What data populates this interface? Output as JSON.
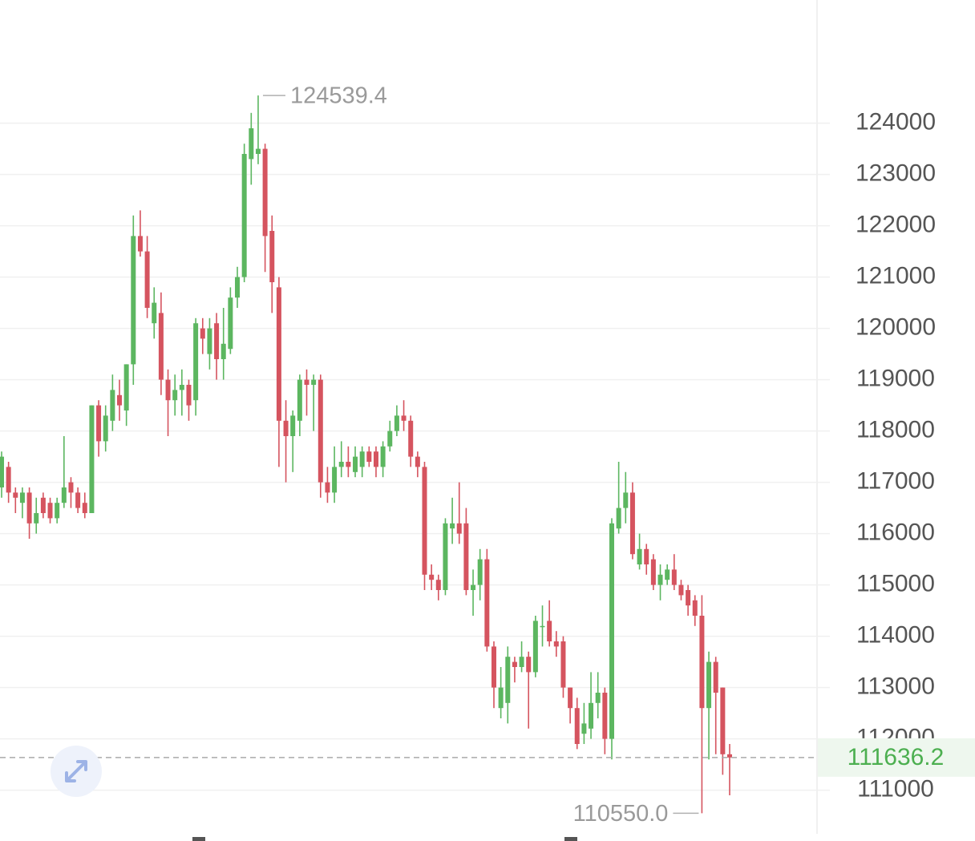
{
  "chart_data": {
    "type": "candlestick",
    "ylim": [
      110150,
      126400
    ],
    "yticks": [
      111000,
      112000,
      113000,
      114000,
      115000,
      116000,
      117000,
      118000,
      119000,
      120000,
      121000,
      122000,
      123000,
      124000
    ],
    "grid": true,
    "up_color": "#5cb660",
    "down_color": "#d5545f",
    "open": [
      116900,
      117300,
      116800,
      116600,
      116800,
      116200,
      116700,
      116600,
      116300,
      116600,
      117000,
      116800,
      116600,
      116400,
      118500,
      117800,
      118200,
      118700,
      118400,
      119300,
      121800,
      121500,
      120100,
      120300,
      119000,
      118600,
      118800,
      118900,
      118600,
      120000,
      119500,
      120100,
      119400,
      119600,
      120600,
      121000,
      123300,
      123400,
      123500,
      121900,
      120800,
      118200,
      117900,
      118200,
      119000,
      118900,
      119000,
      117000,
      116800,
      117300,
      117400,
      117200,
      117300,
      117600,
      117600,
      117300,
      117700,
      118000,
      118300,
      118200,
      117500,
      117300,
      115200,
      115100,
      114900,
      116100,
      116200,
      116200,
      114900,
      115000,
      115500,
      113800,
      112600,
      112700,
      113500,
      113400,
      113600,
      113300,
      114200,
      114300,
      113900,
      113900,
      113000,
      112600,
      112100,
      112200,
      112700,
      112900,
      112000,
      116100,
      116500,
      116800,
      115400,
      115700,
      115500,
      115000,
      115100,
      115300,
      115000,
      114900,
      114700,
      114400,
      112600,
      113500,
      113000,
      111700
    ],
    "high": [
      117600,
      117400,
      116900,
      116900,
      116900,
      116700,
      116800,
      116700,
      116700,
      117900,
      117100,
      116900,
      116800,
      118500,
      118600,
      118500,
      119100,
      119000,
      119300,
      122200,
      122300,
      121800,
      120800,
      120700,
      119200,
      119100,
      119200,
      119000,
      120200,
      120200,
      120200,
      120300,
      120400,
      120800,
      121200,
      123600,
      124200,
      124539.4,
      123600,
      122200,
      121000,
      118600,
      118400,
      119100,
      119200,
      119100,
      119100,
      117300,
      117700,
      117800,
      117700,
      117700,
      117700,
      117700,
      117700,
      117800,
      118200,
      118500,
      118600,
      118300,
      117600,
      117400,
      115400,
      115200,
      116300,
      116700,
      117000,
      116500,
      115300,
      115700,
      115700,
      113900,
      113400,
      113800,
      113600,
      113900,
      113700,
      114400,
      114600,
      114700,
      114100,
      114000,
      113000,
      112800,
      112700,
      113300,
      113300,
      113000,
      116300,
      117400,
      117200,
      117000,
      116000,
      115800,
      115600,
      115400,
      115400,
      115600,
      115100,
      115000,
      114800,
      114800,
      113700,
      113600,
      113000,
      111900
    ],
    "low": [
      116700,
      116600,
      116400,
      116300,
      115900,
      116000,
      116300,
      116200,
      116200,
      116500,
      116500,
      116400,
      116300,
      116400,
      117500,
      117600,
      118000,
      118200,
      118100,
      118900,
      121400,
      120200,
      119800,
      118700,
      117900,
      118300,
      118300,
      118200,
      118300,
      119500,
      119200,
      119000,
      119000,
      119500,
      120400,
      120900,
      122800,
      123200,
      121100,
      120300,
      117300,
      117000,
      117200,
      117900,
      118300,
      118000,
      116700,
      116600,
      116600,
      117100,
      117100,
      117100,
      117100,
      117300,
      117100,
      117100,
      117600,
      117900,
      118000,
      117300,
      117100,
      114900,
      114900,
      114700,
      114800,
      115800,
      115800,
      114800,
      114400,
      114700,
      113700,
      112600,
      112400,
      112300,
      113100,
      113300,
      112200,
      113200,
      113800,
      113800,
      113600,
      112800,
      112300,
      111800,
      111900,
      112000,
      112400,
      111700,
      111600,
      116000,
      116200,
      115500,
      115300,
      115200,
      114900,
      114700,
      115000,
      114900,
      114700,
      114400,
      114200,
      110550,
      111600,
      111700,
      111300,
      110900
    ],
    "close": [
      117500,
      116800,
      116700,
      116800,
      116200,
      116400,
      116400,
      116300,
      116600,
      116900,
      116800,
      116500,
      116400,
      118500,
      117800,
      118300,
      118800,
      118500,
      119300,
      121800,
      121500,
      120400,
      120500,
      119000,
      118600,
      118800,
      118900,
      118500,
      120100,
      119800,
      120000,
      119400,
      119700,
      120600,
      121000,
      123400,
      123900,
      123500,
      121800,
      120900,
      118200,
      117900,
      118300,
      119000,
      118900,
      119000,
      117000,
      116800,
      117300,
      117400,
      117300,
      117500,
      117600,
      117400,
      117300,
      117700,
      118000,
      118300,
      118200,
      117500,
      117300,
      115200,
      115100,
      114900,
      116200,
      116200,
      116000,
      114900,
      115000,
      115500,
      113800,
      113000,
      113000,
      113600,
      113400,
      113600,
      113300,
      114300,
      114200,
      113900,
      113800,
      113000,
      112600,
      111900,
      112300,
      112700,
      112900,
      112000,
      116200,
      116500,
      116800,
      115600,
      115700,
      115400,
      115000,
      115200,
      115300,
      115000,
      114800,
      114600,
      114400,
      112600,
      113500,
      112900,
      111700,
      111636.2
    ],
    "high_label": {
      "value": 124539.4,
      "label": "124539.4"
    },
    "low_label": {
      "value": 110550,
      "label": "110550.0"
    },
    "last_price": {
      "value": 111636.2,
      "label": "111636.2"
    }
  }
}
